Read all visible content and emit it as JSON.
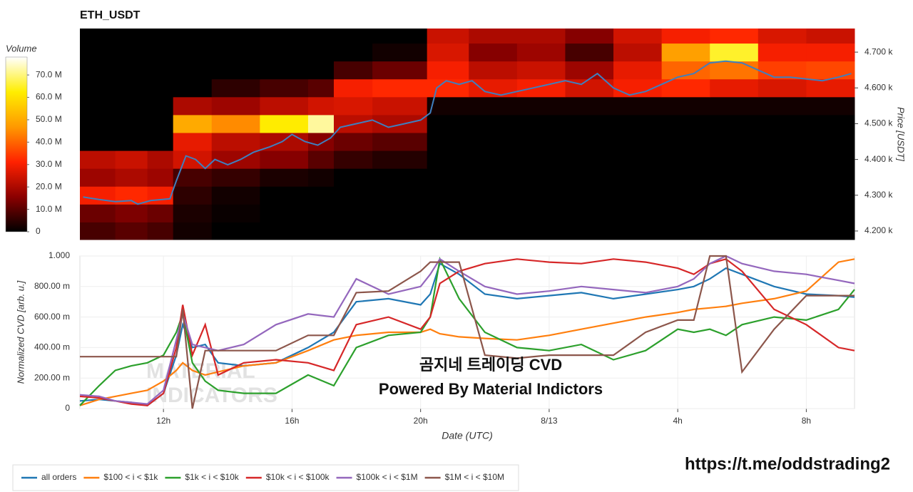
{
  "chart_data": [
    {
      "type": "heatmap",
      "title": "ETH_USDT",
      "ylabel": "Price [USDT]",
      "xlim": [
        9.4,
        33.5
      ],
      "ylim": [
        4176,
        4766
      ],
      "yticks": [
        {
          "value": 4200,
          "label": "4.200 k"
        },
        {
          "value": 4300,
          "label": "4.300 k"
        },
        {
          "value": 4400,
          "label": "4.400 k"
        },
        {
          "value": 4500,
          "label": "4.500 k"
        },
        {
          "value": 4600,
          "label": "4.600 k"
        },
        {
          "value": 4700,
          "label": "4.700 k"
        }
      ],
      "x_edges": [
        9.4,
        10.5,
        11.5,
        12.3,
        13.5,
        15,
        16.5,
        17.3,
        18.5,
        20.2,
        21.5,
        23,
        24.5,
        26,
        27.5,
        29,
        30.5,
        32,
        33.5
      ],
      "y_edges": [
        4176,
        4225,
        4275,
        4325,
        4375,
        4425,
        4475,
        4525,
        4575,
        4625,
        4675,
        4725,
        4766
      ],
      "z": [
        [
          8000000.0,
          10000000.0,
          8000000.0,
          2000000.0,
          0,
          0,
          0,
          0,
          0,
          0,
          0,
          0,
          0,
          0,
          0,
          0,
          0,
          0
        ],
        [
          12000000.0,
          14000000.0,
          12000000.0,
          3000000.0,
          1000000.0,
          0,
          0,
          0,
          0,
          0,
          0,
          0,
          0,
          0,
          0,
          0,
          0,
          0
        ],
        [
          30000000.0,
          32000000.0,
          30000000.0,
          5000000.0,
          2000000.0,
          0,
          0,
          0,
          0,
          0,
          0,
          0,
          0,
          0,
          0,
          0,
          0,
          0
        ],
        [
          18000000.0,
          20000000.0,
          18000000.0,
          8000000.0,
          6000000.0,
          3000000.0,
          2000000.0,
          0,
          0,
          0,
          0,
          0,
          0,
          0,
          0,
          0,
          0,
          0
        ],
        [
          22000000.0,
          24000000.0,
          20000000.0,
          25000000.0,
          18000000.0,
          15000000.0,
          10000000.0,
          6000000.0,
          4000000.0,
          0,
          0,
          0,
          0,
          0,
          0,
          0,
          0,
          0
        ],
        [
          0,
          0,
          0,
          28000000.0,
          22000000.0,
          20000000.0,
          15000000.0,
          12000000.0,
          10000000.0,
          0,
          0,
          0,
          0,
          0,
          0,
          0,
          0,
          0
        ],
        [
          0,
          0,
          0,
          50000000.0,
          45000000.0,
          62000000.0,
          72000000.0,
          22000000.0,
          20000000.0,
          0,
          0,
          0,
          0,
          0,
          0,
          0,
          0,
          0
        ],
        [
          0,
          0,
          0,
          20000000.0,
          18000000.0,
          22000000.0,
          25000000.0,
          26000000.0,
          24000000.0,
          2000000.0,
          2000000.0,
          2000000.0,
          2000000.0,
          2000000.0,
          2000000.0,
          2000000.0,
          2000000.0,
          2000000.0
        ],
        [
          0,
          0,
          0,
          0,
          5000000.0,
          8000000.0,
          10000000.0,
          30000000.0,
          32000000.0,
          32000000.0,
          28000000.0,
          30000000.0,
          25000000.0,
          30000000.0,
          32000000.0,
          28000000.0,
          26000000.0,
          28000000.0
        ],
        [
          0,
          0,
          0,
          0,
          0,
          0,
          0,
          8000000.0,
          12000000.0,
          30000000.0,
          22000000.0,
          24000000.0,
          18000000.0,
          28000000.0,
          40000000.0,
          42000000.0,
          35000000.0,
          36000000.0
        ],
        [
          0,
          0,
          0,
          0,
          0,
          0,
          0,
          0,
          2000000.0,
          26000000.0,
          15000000.0,
          18000000.0,
          8000000.0,
          22000000.0,
          48000000.0,
          65000000.0,
          30000000.0,
          30000000.0
        ],
        [
          0,
          0,
          0,
          0,
          0,
          0,
          0,
          0,
          0,
          24000000.0,
          20000000.0,
          20000000.0,
          15000000.0,
          25000000.0,
          30000000.0,
          32000000.0,
          26000000.0,
          24000000.0
        ]
      ],
      "colorscale": [
        "#000000",
        "#8b0000",
        "#ff2200",
        "#ff9900",
        "#ffee00",
        "#ffffff"
      ],
      "colorbar": {
        "title": "Volume",
        "lim": [
          0,
          78000000.0
        ],
        "ticks": [
          0,
          {
            "value": 10000000.0,
            "label": "10.0 M"
          },
          {
            "value": 20000000.0,
            "label": "20.0 M"
          },
          {
            "value": 30000000.0,
            "label": "30.0 M"
          },
          {
            "value": 40000000.0,
            "label": "40.0 M"
          },
          {
            "value": 50000000.0,
            "label": "50.0 M"
          },
          {
            "value": 60000000.0,
            "label": "60.0 M"
          },
          {
            "value": 70000000.0,
            "label": "70.0 M"
          }
        ]
      },
      "series": [
        {
          "color": "#3f7fbf",
          "x": [
            9.5,
            10,
            10.5,
            11,
            11.2,
            11.6,
            12.2,
            12.4,
            12.7,
            13,
            13.3,
            13.6,
            14,
            14.4,
            14.8,
            15.3,
            15.7,
            16,
            16.4,
            16.8,
            17.2,
            17.5,
            18,
            18.5,
            19,
            19.5,
            20,
            20.3,
            20.5,
            20.8,
            21.2,
            21.6,
            22,
            22.5,
            23,
            23.5,
            24,
            24.5,
            25,
            25.5,
            26,
            26.5,
            27,
            27.5,
            28,
            28.5,
            29,
            29.5,
            30,
            30.5,
            31,
            31.5,
            32,
            32.5,
            33,
            33.4
          ],
          "values": [
            4295,
            4288,
            4282,
            4285,
            4275,
            4285,
            4290,
            4340,
            4410,
            4400,
            4375,
            4400,
            4385,
            4400,
            4420,
            4435,
            4450,
            4470,
            4450,
            4440,
            4460,
            4490,
            4500,
            4510,
            4490,
            4500,
            4510,
            4530,
            4600,
            4620,
            4610,
            4620,
            4590,
            4580,
            4590,
            4600,
            4610,
            4620,
            4610,
            4640,
            4600,
            4580,
            4590,
            4610,
            4630,
            4640,
            4670,
            4675,
            4670,
            4650,
            4630,
            4630,
            4625,
            4620,
            4630,
            4640
          ]
        }
      ]
    },
    {
      "type": "line",
      "xlabel": "Date (UTC)",
      "ylabel": "Normalized CVD [arb. u.]",
      "grid": true,
      "xlim": [
        9.4,
        33.5
      ],
      "ylim": [
        0,
        1
      ],
      "xticks": [
        {
          "value": 12,
          "label": "12h"
        },
        {
          "value": 16,
          "label": "16h"
        },
        {
          "value": 20,
          "label": "20h"
        },
        {
          "value": 24,
          "label": "8/13"
        },
        {
          "value": 28,
          "label": "4h"
        },
        {
          "value": 32,
          "label": "8h"
        }
      ],
      "yticks": [
        0,
        {
          "value": 0.2,
          "label": "200.00 m"
        },
        {
          "value": 0.4,
          "label": "400.00 m"
        },
        {
          "value": 0.6,
          "label": "600.00 m"
        },
        {
          "value": 0.8,
          "label": "800.00 m"
        },
        {
          "value": 1,
          "label": "1.000"
        }
      ],
      "annotations": [
        "곰지네 트레이딩 CVD",
        "Powered By Material Indictors"
      ],
      "watermark": [
        "MATERIAL",
        "INDICATORS"
      ],
      "x": [
        9.4,
        10,
        10.5,
        11,
        11.5,
        12,
        12.4,
        12.6,
        12.9,
        13.3,
        13.7,
        14.5,
        15.5,
        16.5,
        17.3,
        18,
        19,
        20,
        20.3,
        20.6,
        21.2,
        22,
        23,
        24,
        25,
        26,
        27,
        28,
        28.5,
        29,
        29.5,
        30,
        31,
        32,
        33,
        33.5
      ],
      "series": [
        {
          "name": "all orders",
          "color": "#1f77b4",
          "values": [
            0.05,
            0.06,
            0.05,
            0.04,
            0.02,
            0.1,
            0.35,
            0.55,
            0.4,
            0.42,
            0.3,
            0.28,
            0.3,
            0.4,
            0.5,
            0.7,
            0.72,
            0.68,
            0.75,
            0.95,
            0.88,
            0.75,
            0.72,
            0.74,
            0.76,
            0.72,
            0.75,
            0.78,
            0.8,
            0.85,
            0.92,
            0.88,
            0.8,
            0.75,
            0.74,
            0.73
          ]
        },
        {
          "name": "$100 < i < $1k",
          "color": "#ff7f0e",
          "values": [
            0.02,
            0.06,
            0.08,
            0.1,
            0.12,
            0.18,
            0.25,
            0.3,
            0.25,
            0.22,
            0.24,
            0.28,
            0.3,
            0.38,
            0.45,
            0.48,
            0.5,
            0.5,
            0.52,
            0.49,
            0.47,
            0.46,
            0.45,
            0.48,
            0.52,
            0.56,
            0.6,
            0.63,
            0.65,
            0.66,
            0.67,
            0.69,
            0.72,
            0.77,
            0.96,
            0.98
          ]
        },
        {
          "name": "$1k < i < $10k",
          "color": "#2ca02c",
          "values": [
            0.02,
            0.15,
            0.25,
            0.28,
            0.3,
            0.35,
            0.5,
            0.62,
            0.3,
            0.18,
            0.12,
            0.1,
            0.1,
            0.22,
            0.15,
            0.4,
            0.48,
            0.5,
            0.6,
            0.98,
            0.72,
            0.5,
            0.4,
            0.38,
            0.42,
            0.32,
            0.38,
            0.52,
            0.5,
            0.52,
            0.48,
            0.55,
            0.6,
            0.58,
            0.65,
            0.78
          ]
        },
        {
          "name": "$10k < i < $100k",
          "color": "#d62728",
          "values": [
            0.08,
            0.07,
            0.05,
            0.03,
            0.02,
            0.1,
            0.4,
            0.68,
            0.35,
            0.55,
            0.22,
            0.3,
            0.32,
            0.3,
            0.25,
            0.55,
            0.6,
            0.52,
            0.6,
            0.82,
            0.9,
            0.95,
            0.98,
            0.96,
            0.95,
            0.98,
            0.96,
            0.92,
            0.88,
            0.95,
            0.98,
            0.9,
            0.65,
            0.55,
            0.4,
            0.38
          ]
        },
        {
          "name": "$100k < i < $1M",
          "color": "#9467bd",
          "values": [
            0.09,
            0.08,
            0.05,
            0.04,
            0.03,
            0.12,
            0.45,
            0.62,
            0.42,
            0.4,
            0.38,
            0.42,
            0.55,
            0.62,
            0.6,
            0.85,
            0.75,
            0.8,
            0.88,
            0.98,
            0.9,
            0.8,
            0.75,
            0.77,
            0.8,
            0.78,
            0.76,
            0.8,
            0.85,
            0.95,
            1,
            0.95,
            0.9,
            0.88,
            0.84,
            0.82
          ]
        },
        {
          "name": "$1M < i < $10M",
          "color": "#8c564b",
          "values": [
            0.34,
            0.34,
            0.34,
            0.34,
            0.34,
            0.34,
            0.34,
            0.65,
            0,
            0.38,
            0.38,
            0.38,
            0.38,
            0.48,
            0.48,
            0.76,
            0.77,
            0.9,
            0.96,
            0.96,
            0.96,
            0.35,
            0.33,
            0.35,
            0.35,
            0.35,
            0.5,
            0.58,
            0.58,
            1,
            1,
            0.24,
            0.52,
            0.74,
            0.74,
            0.74
          ]
        }
      ]
    }
  ],
  "link": "https://t.me/oddstrading2"
}
